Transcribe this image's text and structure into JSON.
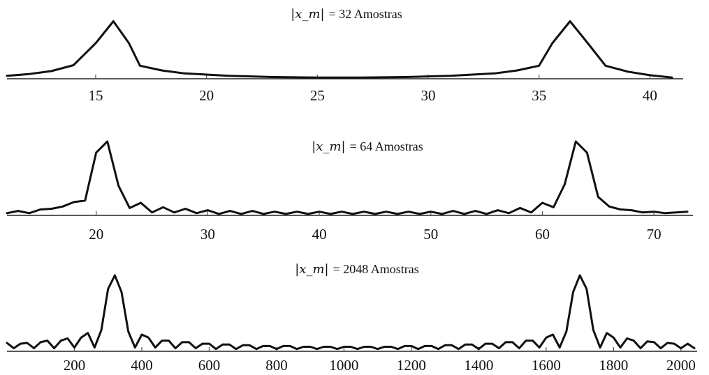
{
  "chart_data": [
    {
      "type": "line",
      "title_math": "|x_m|",
      "title": "= 32 Amostras",
      "xlabel": "",
      "ylabel": "",
      "xlim": [
        11,
        41.5
      ],
      "ylim": [
        0,
        1
      ],
      "xticks": [
        15,
        20,
        25,
        30,
        35,
        40
      ],
      "grid": false,
      "series": [
        {
          "x": [
            11,
            12,
            13,
            14,
            15,
            15.8,
            16.5,
            17,
            18,
            19,
            20,
            21,
            22,
            23,
            24,
            25,
            26,
            27,
            28,
            29,
            30,
            31,
            32,
            33,
            34,
            35,
            35.6,
            36.4,
            37.2,
            38,
            39,
            40,
            41
          ],
          "y": [
            0.05,
            0.08,
            0.13,
            0.23,
            0.6,
            0.97,
            0.6,
            0.22,
            0.14,
            0.09,
            0.07,
            0.05,
            0.04,
            0.03,
            0.025,
            0.02,
            0.02,
            0.02,
            0.025,
            0.03,
            0.04,
            0.05,
            0.07,
            0.09,
            0.14,
            0.22,
            0.6,
            0.97,
            0.6,
            0.22,
            0.12,
            0.06,
            0.02
          ]
        }
      ]
    },
    {
      "type": "line",
      "title_math": "|x_m|",
      "title": "= 64 Amostras",
      "xlabel": "",
      "ylabel": "",
      "xlim": [
        12,
        73.5
      ],
      "ylim": [
        0,
        1
      ],
      "xticks": [
        20,
        30,
        40,
        50,
        60,
        70
      ],
      "grid": false,
      "series": [
        {
          "x": [
            12,
            13,
            14,
            15,
            16,
            17,
            18,
            19,
            20,
            21,
            22,
            23,
            24,
            25,
            26,
            27,
            28,
            29,
            30,
            31,
            32,
            33,
            34,
            35,
            36,
            37,
            38,
            39,
            40,
            41,
            42,
            43,
            44,
            45,
            46,
            47,
            48,
            49,
            50,
            51,
            52,
            53,
            54,
            55,
            56,
            57,
            58,
            59,
            60,
            61,
            62,
            63,
            64,
            65,
            66,
            67,
            68,
            69,
            70,
            71,
            72,
            73
          ],
          "y": [
            0.03,
            0.06,
            0.03,
            0.08,
            0.09,
            0.12,
            0.18,
            0.2,
            0.85,
            1.0,
            0.4,
            0.1,
            0.17,
            0.04,
            0.11,
            0.04,
            0.09,
            0.03,
            0.07,
            0.02,
            0.06,
            0.02,
            0.06,
            0.02,
            0.05,
            0.02,
            0.05,
            0.02,
            0.05,
            0.02,
            0.05,
            0.02,
            0.05,
            0.02,
            0.05,
            0.02,
            0.05,
            0.02,
            0.05,
            0.02,
            0.06,
            0.02,
            0.06,
            0.02,
            0.07,
            0.03,
            0.1,
            0.04,
            0.17,
            0.11,
            0.42,
            1.0,
            0.85,
            0.25,
            0.12,
            0.08,
            0.07,
            0.04,
            0.05,
            0.03,
            0.04,
            0.05
          ]
        }
      ]
    },
    {
      "type": "line",
      "title_math": "|x_m|",
      "title": "= 2048 Amostras",
      "xlabel": "",
      "ylabel": "",
      "xlim": [
        0,
        2048
      ],
      "ylim": [
        0,
        1
      ],
      "xticks": [
        200,
        400,
        600,
        800,
        1000,
        1200,
        1400,
        1600,
        1800,
        2000
      ],
      "grid": false,
      "series": [
        {
          "x": [
            0,
            20,
            40,
            60,
            80,
            100,
            120,
            140,
            160,
            180,
            200,
            220,
            240,
            260,
            280,
            300,
            320,
            340,
            360,
            380,
            400,
            420,
            440,
            460,
            480,
            500,
            520,
            540,
            560,
            580,
            600,
            620,
            640,
            660,
            680,
            700,
            720,
            740,
            760,
            780,
            800,
            820,
            840,
            860,
            880,
            900,
            920,
            940,
            960,
            980,
            1000,
            1020,
            1040,
            1060,
            1080,
            1100,
            1120,
            1140,
            1160,
            1180,
            1200,
            1220,
            1240,
            1260,
            1280,
            1300,
            1320,
            1340,
            1360,
            1380,
            1400,
            1420,
            1440,
            1460,
            1480,
            1500,
            1520,
            1540,
            1560,
            1580,
            1600,
            1620,
            1640,
            1660,
            1680,
            1700,
            1720,
            1740,
            1760,
            1780,
            1800,
            1820,
            1840,
            1860,
            1880,
            1900,
            1920,
            1940,
            1960,
            1980,
            2000,
            2020,
            2040
          ],
          "y": [
            0.11,
            0.04,
            0.1,
            0.11,
            0.04,
            0.12,
            0.14,
            0.04,
            0.14,
            0.17,
            0.05,
            0.18,
            0.24,
            0.05,
            0.28,
            0.82,
            1.0,
            0.78,
            0.26,
            0.05,
            0.22,
            0.18,
            0.05,
            0.14,
            0.14,
            0.04,
            0.12,
            0.12,
            0.04,
            0.1,
            0.1,
            0.03,
            0.09,
            0.09,
            0.03,
            0.08,
            0.08,
            0.03,
            0.07,
            0.07,
            0.03,
            0.07,
            0.07,
            0.03,
            0.06,
            0.06,
            0.03,
            0.06,
            0.06,
            0.03,
            0.06,
            0.06,
            0.03,
            0.06,
            0.06,
            0.03,
            0.06,
            0.06,
            0.03,
            0.07,
            0.07,
            0.03,
            0.07,
            0.07,
            0.03,
            0.08,
            0.08,
            0.03,
            0.09,
            0.09,
            0.03,
            0.1,
            0.1,
            0.04,
            0.12,
            0.12,
            0.04,
            0.14,
            0.14,
            0.05,
            0.18,
            0.22,
            0.05,
            0.26,
            0.78,
            1.0,
            0.82,
            0.28,
            0.05,
            0.24,
            0.18,
            0.05,
            0.17,
            0.14,
            0.04,
            0.13,
            0.12,
            0.04,
            0.11,
            0.1,
            0.04,
            0.1,
            0.04
          ]
        }
      ]
    }
  ]
}
